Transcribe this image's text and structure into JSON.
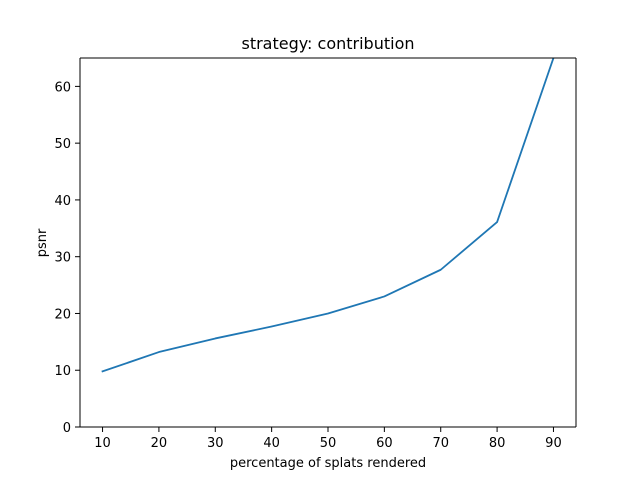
{
  "chart_data": {
    "type": "line",
    "title": "strategy: contribution",
    "xlabel": "percentage of splats rendered",
    "ylabel": "psnr",
    "x": [
      10,
      20,
      30,
      40,
      50,
      60,
      70,
      80,
      90
    ],
    "series": [
      {
        "values": [
          9.8,
          13.2,
          15.6,
          17.7,
          20.0,
          23.0,
          27.7,
          36.1,
          65.0
        ],
        "color": "#1f77b4"
      }
    ],
    "xticks": [
      10,
      20,
      30,
      40,
      50,
      60,
      70,
      80,
      90
    ],
    "yticks": [
      0,
      10,
      20,
      30,
      40,
      50,
      60
    ],
    "xlim": [
      6,
      94
    ],
    "ylim": [
      0,
      65
    ],
    "grid": false,
    "legend": "none"
  }
}
